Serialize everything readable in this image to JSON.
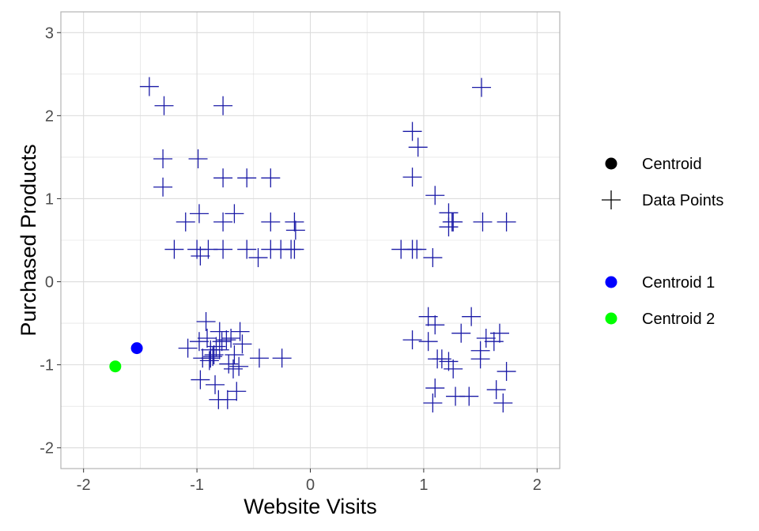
{
  "chart_data": {
    "type": "scatter",
    "title": "",
    "xlabel": "Website Visits",
    "ylabel": "Purchased Products",
    "xlim": [
      -2.2,
      2.2
    ],
    "ylim": [
      -2.25,
      3.25
    ],
    "x_ticks": [
      -2,
      -1,
      0,
      1,
      2
    ],
    "y_ticks": [
      -2,
      -1,
      0,
      1,
      2,
      3
    ],
    "x_tick_labels": [
      "-2",
      "-1",
      "0",
      "1",
      "2"
    ],
    "y_tick_labels": [
      "-2",
      "-1",
      "0",
      "1",
      "2",
      "3"
    ],
    "grid": true,
    "legend_position": "right",
    "colors": {
      "points": "#1a1aa6",
      "centroid_legend": "#000000",
      "centroid_1": "#0000ff",
      "centroid_2": "#00ff00",
      "grid": "#dcdcdc",
      "panel_border": "#b3b3b3"
    },
    "legend": {
      "group1": [
        {
          "label": "Centroid",
          "symbol": "dot",
          "color": "#000000"
        },
        {
          "label": "Data Points",
          "symbol": "plus",
          "color": "#000000"
        }
      ],
      "group2": [
        {
          "label": "Centroid 1",
          "symbol": "dot",
          "color": "#0000ff"
        },
        {
          "label": "Centroid 2",
          "symbol": "dot",
          "color": "#00ff00"
        }
      ]
    },
    "series": [
      {
        "marker": "plus",
        "points": [
          [
            -1.42,
            2.35
          ],
          [
            -1.29,
            2.12
          ],
          [
            -0.77,
            2.12
          ],
          [
            -1.3,
            1.48
          ],
          [
            -0.99,
            1.48
          ],
          [
            -1.3,
            1.14
          ],
          [
            -0.77,
            1.25
          ],
          [
            -0.56,
            1.25
          ],
          [
            -0.35,
            1.25
          ],
          [
            -1.1,
            0.72
          ],
          [
            -0.98,
            0.82
          ],
          [
            -0.77,
            0.72
          ],
          [
            -0.67,
            0.82
          ],
          [
            -0.35,
            0.72
          ],
          [
            -0.14,
            0.72
          ],
          [
            -0.13,
            0.62
          ],
          [
            -1.2,
            0.39
          ],
          [
            -1.0,
            0.39
          ],
          [
            -0.97,
            0.31
          ],
          [
            -0.9,
            0.39
          ],
          [
            -0.77,
            0.39
          ],
          [
            -0.56,
            0.39
          ],
          [
            -0.46,
            0.29
          ],
          [
            -0.35,
            0.39
          ],
          [
            -0.26,
            0.39
          ],
          [
            -0.17,
            0.39
          ],
          [
            -0.14,
            0.39
          ],
          [
            -1.08,
            -0.8
          ],
          [
            -0.98,
            -0.72
          ],
          [
            -0.92,
            -0.48
          ],
          [
            -0.91,
            -0.68
          ],
          [
            -0.88,
            -0.82
          ],
          [
            -0.86,
            -0.9
          ],
          [
            -0.83,
            -0.78
          ],
          [
            -0.8,
            -0.6
          ],
          [
            -0.78,
            -0.72
          ],
          [
            -0.74,
            -0.7
          ],
          [
            -0.7,
            -0.68
          ],
          [
            -0.67,
            -0.88
          ],
          [
            -0.62,
            -0.6
          ],
          [
            -0.6,
            -0.75
          ],
          [
            -0.95,
            -0.92
          ],
          [
            -0.89,
            -0.95
          ],
          [
            -0.85,
            -0.88
          ],
          [
            -0.8,
            -0.82
          ],
          [
            -0.72,
            -0.99
          ],
          [
            -0.68,
            -1.05
          ],
          [
            -0.63,
            -1.02
          ],
          [
            -0.45,
            -0.92
          ],
          [
            -0.25,
            -0.92
          ],
          [
            -0.97,
            -1.18
          ],
          [
            -0.84,
            -1.24
          ],
          [
            -0.81,
            -1.42
          ],
          [
            -0.73,
            -1.42
          ],
          [
            -0.65,
            -1.32
          ],
          [
            -0.88,
            -0.92
          ],
          [
            0.9,
            1.81
          ],
          [
            0.95,
            1.62
          ],
          [
            0.9,
            1.26
          ],
          [
            1.1,
            1.04
          ],
          [
            1.22,
            0.83
          ],
          [
            1.25,
            0.72
          ],
          [
            1.22,
            0.66
          ],
          [
            1.26,
            0.72
          ],
          [
            1.52,
            0.72
          ],
          [
            1.73,
            0.72
          ],
          [
            0.8,
            0.39
          ],
          [
            0.9,
            0.39
          ],
          [
            0.94,
            0.39
          ],
          [
            1.08,
            0.29
          ],
          [
            1.51,
            2.34
          ],
          [
            1.04,
            -0.42
          ],
          [
            1.1,
            -0.52
          ],
          [
            0.9,
            -0.7
          ],
          [
            1.04,
            -0.72
          ],
          [
            1.12,
            -0.93
          ],
          [
            1.16,
            -0.93
          ],
          [
            1.22,
            -0.96
          ],
          [
            1.26,
            -1.05
          ],
          [
            1.33,
            -0.62
          ],
          [
            1.42,
            -0.42
          ],
          [
            1.5,
            -0.83
          ],
          [
            1.5,
            -0.93
          ],
          [
            1.55,
            -0.68
          ],
          [
            1.62,
            -0.72
          ],
          [
            1.67,
            -0.62
          ],
          [
            1.73,
            -1.08
          ],
          [
            1.1,
            -1.28
          ],
          [
            1.08,
            -1.46
          ],
          [
            1.28,
            -1.38
          ],
          [
            1.4,
            -1.38
          ],
          [
            1.64,
            -1.3
          ],
          [
            1.7,
            -1.46
          ]
        ]
      },
      {
        "name": "Centroid 1",
        "marker": "dot",
        "points": [
          [
            -1.53,
            -0.8
          ]
        ]
      },
      {
        "name": "Centroid 2",
        "marker": "dot",
        "points": [
          [
            -1.72,
            -1.02
          ]
        ]
      }
    ]
  }
}
